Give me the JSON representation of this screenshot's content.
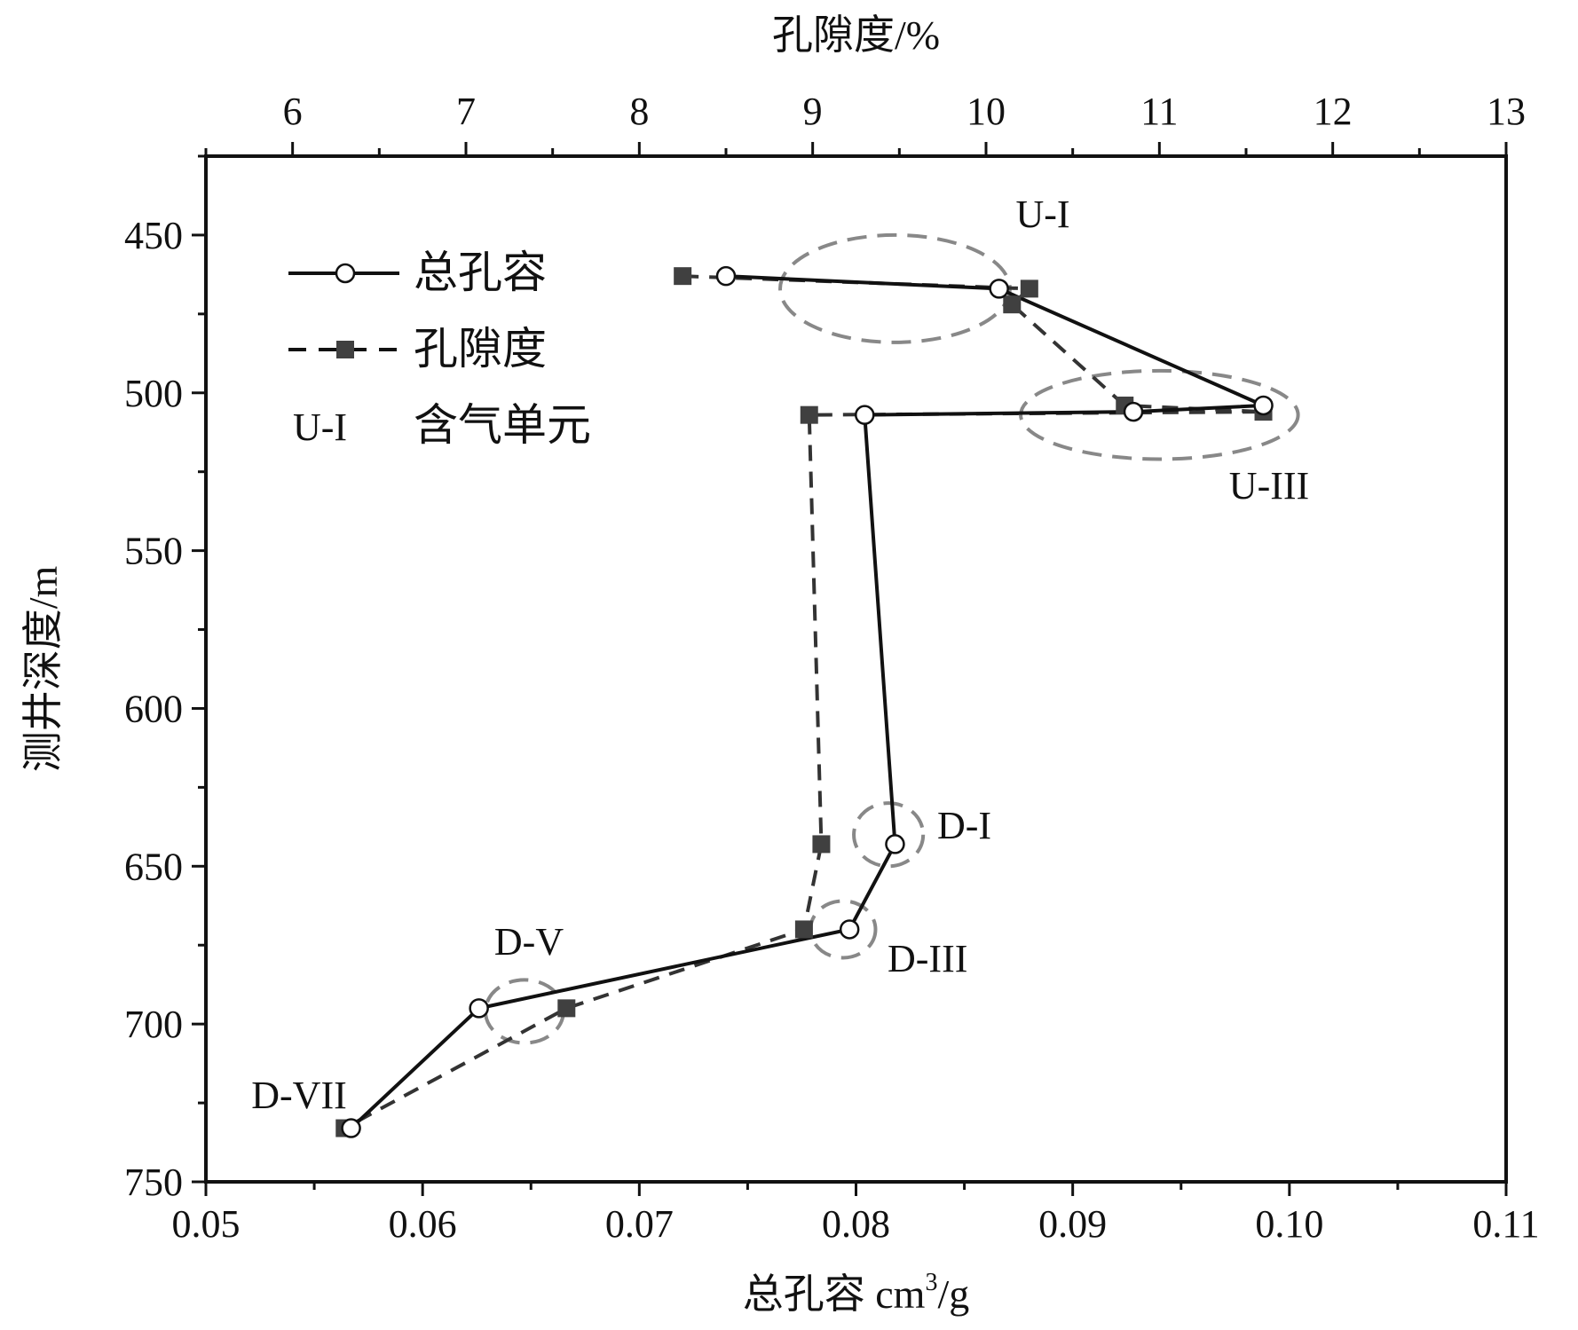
{
  "chart_data": {
    "type": "line",
    "title": "",
    "bottom_axis": {
      "label": "总孔容 cm³/g",
      "label_main": "总孔容 cm",
      "label_sup": "3",
      "label_tail": "/g",
      "range": [
        0.05,
        0.11
      ],
      "ticks": [
        "0.05",
        "0.06",
        "0.07",
        "0.08",
        "0.09",
        "0.10",
        "0.11"
      ]
    },
    "top_axis": {
      "label": "孔隙度/%",
      "range": [
        5.5,
        13
      ],
      "ticks": [
        "6",
        "7",
        "8",
        "9",
        "10",
        "11",
        "12",
        "13"
      ]
    },
    "left_axis": {
      "label": "测井深度/m",
      "range": [
        425,
        750
      ],
      "inverted": true,
      "ticks": [
        "450",
        "500",
        "550",
        "600",
        "650",
        "700",
        "750"
      ]
    },
    "series": [
      {
        "name": "总孔容",
        "axis": "bottom",
        "line_style": "solid",
        "marker": "open-circle",
        "color": "#111111",
        "points": [
          {
            "x": 0.074,
            "depth": 463
          },
          {
            "x": 0.0866,
            "depth": 467
          },
          {
            "x": 0.0988,
            "depth": 504
          },
          {
            "x": 0.0928,
            "depth": 506
          },
          {
            "x": 0.0804,
            "depth": 507
          },
          {
            "x": 0.0818,
            "depth": 643
          },
          {
            "x": 0.0797,
            "depth": 670
          },
          {
            "x": 0.0626,
            "depth": 695
          },
          {
            "x": 0.0567,
            "depth": 733
          }
        ]
      },
      {
        "name": "孔隙度",
        "axis": "top",
        "line_style": "dashed",
        "marker": "filled-square",
        "color": "#333333",
        "points": [
          {
            "x": 8.25,
            "depth": 463
          },
          {
            "x": 10.25,
            "depth": 467
          },
          {
            "x": 10.15,
            "depth": 472
          },
          {
            "x": 10.8,
            "depth": 504
          },
          {
            "x": 11.6,
            "depth": 506
          },
          {
            "x": 8.98,
            "depth": 507
          },
          {
            "x": 9.05,
            "depth": 643
          },
          {
            "x": 8.95,
            "depth": 670
          },
          {
            "x": 7.58,
            "depth": 695
          },
          {
            "x": 6.3,
            "depth": 733
          }
        ]
      }
    ],
    "legend": {
      "placement": "top-left",
      "entries": [
        {
          "label": "总孔容",
          "style": "solid-circle"
        },
        {
          "label": "孔隙度",
          "style": "dashed-square"
        },
        {
          "symbol": "U-I",
          "label": "含气单元"
        }
      ]
    },
    "units": [
      {
        "label": "U-I",
        "cx": 0.0818,
        "depth": 467,
        "rx": 0.0053,
        "ry": 17
      },
      {
        "label": "U-III",
        "cx": 0.094,
        "depth": 507,
        "rx": 0.0064,
        "ry": 14
      },
      {
        "label": "D-I",
        "cx": 0.0815,
        "depth": 640,
        "rx": 0.0016,
        "ry": 10
      },
      {
        "label": "D-III",
        "cx": 0.0794,
        "depth": 670,
        "rx": 0.0015,
        "ry": 9
      },
      {
        "label": "D-V",
        "cx": 0.0647,
        "depth": 696,
        "rx": 0.0018,
        "ry": 10
      },
      {
        "label": "D-VII",
        "cx": null,
        "depth": null,
        "rx": null,
        "ry": null
      }
    ]
  }
}
